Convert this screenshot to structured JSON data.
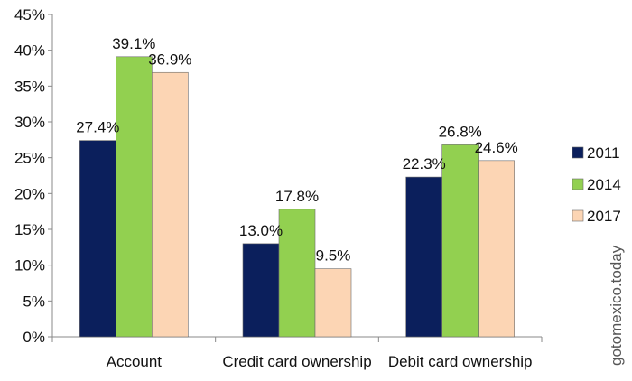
{
  "chart_data": {
    "type": "bar",
    "title": "",
    "xlabel": "",
    "ylabel": "",
    "categories": [
      "Account",
      "Credit card ownership",
      "Debit card ownership"
    ],
    "series": [
      {
        "name": "2011",
        "color": "#0b1f5c",
        "values": [
          27.4,
          13.0,
          22.3
        ],
        "labels": [
          "27.4%",
          "13.0%",
          "22.3%"
        ]
      },
      {
        "name": "2014",
        "color": "#92d050",
        "values": [
          39.1,
          17.8,
          26.8
        ],
        "labels": [
          "39.1%",
          "17.8%",
          "26.8%"
        ]
      },
      {
        "name": "2017",
        "color": "#fcd5b4",
        "values": [
          36.9,
          9.5,
          24.6
        ],
        "labels": [
          "36.9%",
          "9.5%",
          "24.6%"
        ]
      }
    ],
    "ylim": [
      0,
      45
    ],
    "yticks": [
      "0%",
      "5%",
      "10%",
      "15%",
      "20%",
      "25%",
      "30%",
      "35%",
      "40%",
      "45%"
    ],
    "ytick_values": [
      0,
      5,
      10,
      15,
      20,
      25,
      30,
      35,
      40,
      45
    ],
    "grid": false,
    "legend_position": "right"
  },
  "watermark": "gotomexico.today"
}
